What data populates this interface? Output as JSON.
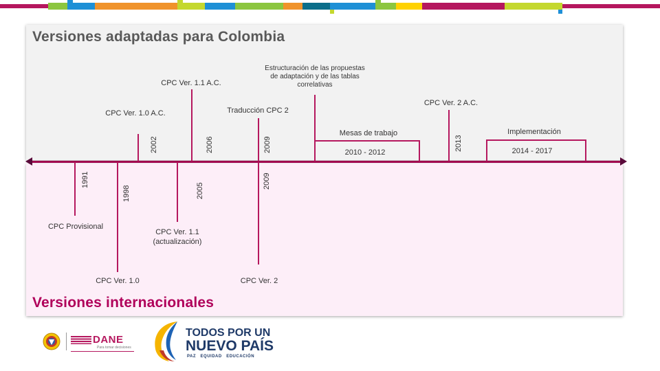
{
  "colors": {
    "accent": "#b5175e",
    "top_panel": "#f2f2f2",
    "bottom_panel": "#fdeef8",
    "title_top": "#595959",
    "title_bottom": "#b0005a"
  },
  "panels": {
    "top_title": "Versiones adaptadas para Colombia",
    "bottom_title": "Versiones internacionales"
  },
  "timeline": {
    "top_events": [
      {
        "year": "2002",
        "label": "CPC Ver. 1.0 A.C."
      },
      {
        "year": "2006",
        "label": "CPC Ver. 1.1 A.C."
      },
      {
        "year": "2009",
        "label": "Traducción CPC 2"
      },
      {
        "year": "",
        "label": "Estructuración de las propuestas de adaptación y de las tablas correlativas"
      },
      {
        "year": "2013",
        "label": "CPC Ver. 2 A.C."
      }
    ],
    "ranges": [
      {
        "title": "Mesas de trabajo",
        "period": "2010 - 2012"
      },
      {
        "title": "Implementación",
        "period": "2014 - 2017"
      }
    ],
    "bottom_events": [
      {
        "year": "1991",
        "label": "CPC Provisional"
      },
      {
        "year": "1998",
        "label": "CPC Ver. 1.0"
      },
      {
        "year": "2005",
        "label": "CPC Ver. 1.1 (actualización)"
      },
      {
        "year": "2009",
        "label": "CPC Ver. 2"
      }
    ]
  },
  "footer": {
    "dane_logo_text": "DANE",
    "dane_tagline": "Para tomar decisiones",
    "gov_slogan_line1": "TODOS POR UN",
    "gov_slogan_line2": "NUEVO PAÍS",
    "gov_tagline": "PAZ   EQUIDAD   EDUCACIÓN"
  }
}
